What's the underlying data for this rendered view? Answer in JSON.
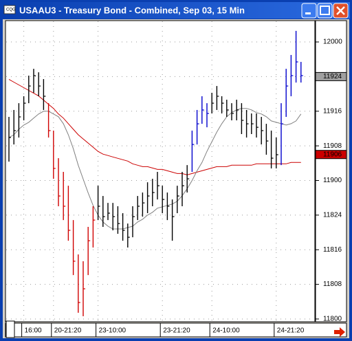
{
  "chart_data": {
    "type": "ohlc",
    "title": "USAAU3 - Treasury Bond - Combined, Sep 03, 15 Min",
    "categories": [
      null,
      null,
      null,
      "16:00",
      null,
      null,
      null,
      null,
      null,
      "20-21:20",
      null,
      null,
      null,
      null,
      null,
      null,
      null,
      null,
      "23-10:00",
      null,
      null,
      null,
      null,
      null,
      null,
      null,
      null,
      null,
      null,
      null,
      null,
      "23-21:20",
      null,
      null,
      null,
      null,
      null,
      null,
      null,
      null,
      null,
      "24-10:00",
      null,
      null,
      null,
      null,
      null,
      null,
      null,
      null,
      null,
      null,
      null,
      null,
      "24-21:20",
      null,
      null,
      null,
      null,
      null
    ],
    "high": [
      119.459,
      119.509,
      119.558,
      119.608,
      119.757,
      119.806,
      119.781,
      119.732,
      119.558,
      119.36,
      119.161,
      119.062,
      118.962,
      118.714,
      118.466,
      118.417,
      118.665,
      118.814,
      118.962,
      118.888,
      118.838,
      118.838,
      118.814,
      118.764,
      118.689,
      118.814,
      118.888,
      118.913,
      118.987,
      119.012,
      119.062,
      118.962,
      118.913,
      118.863,
      118.962,
      119.062,
      119.111,
      119.36,
      119.509,
      119.608,
      119.558,
      119.633,
      119.682,
      119.608,
      119.583,
      119.558,
      119.583,
      119.558,
      119.509,
      119.484,
      119.484,
      119.459,
      119.409,
      119.36,
      119.31,
      119.558,
      119.806,
      119.906,
      120.08,
      119.856
    ],
    "low": [
      119.136,
      119.26,
      119.31,
      119.434,
      119.558,
      119.633,
      119.608,
      119.509,
      119.31,
      119.012,
      118.814,
      118.714,
      118.565,
      118.317,
      118.045,
      118.02,
      118.317,
      118.516,
      118.714,
      118.665,
      118.714,
      118.64,
      118.615,
      118.565,
      118.516,
      118.59,
      118.714,
      118.739,
      118.764,
      118.814,
      118.863,
      118.764,
      118.714,
      118.565,
      118.764,
      118.814,
      118.913,
      119.062,
      119.26,
      119.409,
      119.384,
      119.484,
      119.509,
      119.484,
      119.459,
      119.434,
      119.434,
      119.335,
      119.31,
      119.335,
      119.31,
      119.26,
      119.186,
      119.087,
      119.087,
      119.111,
      119.459,
      119.608,
      119.707,
      119.707
    ],
    "close": [
      119.31,
      119.36,
      119.459,
      119.558,
      119.682,
      119.757,
      119.682,
      119.608,
      119.36,
      119.087,
      118.888,
      118.814,
      118.64,
      118.417,
      118.119,
      118.218,
      118.565,
      118.714,
      118.814,
      118.739,
      118.764,
      118.739,
      118.689,
      118.64,
      118.59,
      118.739,
      118.814,
      118.838,
      118.888,
      118.913,
      118.962,
      118.863,
      118.814,
      118.739,
      118.888,
      118.962,
      119.012,
      119.26,
      119.409,
      119.509,
      119.484,
      119.558,
      119.608,
      119.558,
      119.509,
      119.484,
      119.509,
      119.434,
      119.409,
      119.409,
      119.384,
      119.36,
      119.285,
      119.161,
      119.186,
      119.409,
      119.682,
      119.757,
      119.856,
      119.757
    ],
    "bar_colors": [
      "#000000",
      "#000000",
      "#000000",
      "#000000",
      "#000000",
      "#000000",
      "#000000",
      "#000000",
      "#d00000",
      "#d00000",
      "#d00000",
      "#d00000",
      "#d00000",
      "#d00000",
      "#d00000",
      "#d00000",
      "#d00000",
      "#d00000",
      "#000000",
      "#000000",
      "#000000",
      "#000000",
      "#000000",
      "#000000",
      "#000000",
      "#000000",
      "#000000",
      "#000000",
      "#000000",
      "#000000",
      "#000000",
      "#000000",
      "#000000",
      "#000000",
      "#000000",
      "#000000",
      "#000000",
      "#0000cc",
      "#0000cc",
      "#0000cc",
      "#0000cc",
      "#000000",
      "#000000",
      "#000000",
      "#000000",
      "#000000",
      "#000000",
      "#000000",
      "#000000",
      "#000000",
      "#000000",
      "#000000",
      "#000000",
      "#000000",
      "#000000",
      "#0000cc",
      "#0000cc",
      "#0000cc",
      "#0000cc",
      "#0000cc"
    ],
    "lines": [
      {
        "color": "#cc0000",
        "values": [
          119.73,
          119.71,
          119.69,
          119.67,
          119.65,
          119.63,
          119.61,
          119.58,
          119.55,
          119.52,
          119.48,
          119.45,
          119.41,
          119.37,
          119.33,
          119.3,
          119.27,
          119.24,
          119.21,
          119.19,
          119.18,
          119.17,
          119.16,
          119.15,
          119.14,
          119.12,
          119.11,
          119.1,
          119.1,
          119.09,
          119.08,
          119.08,
          119.07,
          119.06,
          119.05,
          119.05,
          119.04,
          119.05,
          119.06,
          119.07,
          119.08,
          119.09,
          119.1,
          119.1,
          119.1,
          119.11,
          119.11,
          119.11,
          119.11,
          119.11,
          119.12,
          119.12,
          119.12,
          119.12,
          119.12,
          119.12,
          119.12,
          119.13,
          119.13,
          119.13
        ]
      },
      {
        "color": "#808080",
        "values": [
          119.31,
          119.33,
          119.37,
          119.4,
          119.42,
          119.45,
          119.48,
          119.5,
          119.5,
          119.48,
          119.46,
          119.41,
          119.33,
          119.23,
          119.11,
          119.01,
          118.91,
          118.82,
          118.75,
          118.7,
          118.67,
          118.65,
          118.65,
          118.65,
          118.66,
          118.67,
          118.7,
          118.72,
          118.75,
          118.77,
          118.8,
          118.81,
          118.82,
          118.83,
          118.85,
          118.89,
          118.94,
          119.0,
          119.07,
          119.13,
          119.21,
          119.28,
          119.35,
          119.41,
          119.46,
          119.49,
          119.51,
          119.52,
          119.52,
          119.51,
          119.49,
          119.48,
          119.46,
          119.43,
          119.42,
          119.41,
          119.4,
          119.41,
          119.43,
          119.48
        ]
      }
    ],
    "ylim": [
      117.985,
      120.154
    ],
    "yticks": [
      {
        "value": 118,
        "label": "11800"
      },
      {
        "value": 118.25,
        "label": "11808"
      },
      {
        "value": 118.5,
        "label": "11816"
      },
      {
        "value": 118.75,
        "label": "11824"
      },
      {
        "value": 119,
        "label": "11900"
      },
      {
        "value": 119.25,
        "label": "11908"
      },
      {
        "value": 119.5,
        "label": "11916"
      },
      {
        "value": 119.75,
        "label": "11924"
      },
      {
        "value": 120,
        "label": "12000"
      }
    ],
    "price_markers": [
      {
        "value": 119.75,
        "label": "11924",
        "color": "#a0a0a0"
      },
      {
        "value": 119.1875,
        "label": "11906",
        "color": "#cc0000"
      }
    ],
    "grid": true
  }
}
